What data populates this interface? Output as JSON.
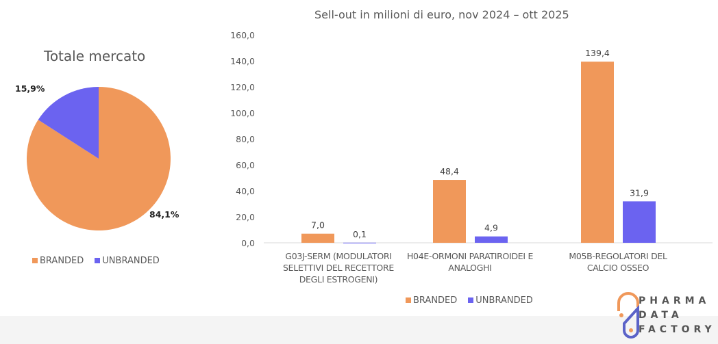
{
  "colors": {
    "branded": "#F0985A",
    "unbranded": "#6B63F0"
  },
  "logo": {
    "line1": "PHARMA",
    "line2": "DATA",
    "line3": "FACTORY"
  },
  "chart_data": [
    {
      "type": "pie",
      "title": "Totale mercato",
      "categories": [
        "BRANDED",
        "UNBRANDED"
      ],
      "values": [
        84.1,
        15.9
      ],
      "labels": [
        "84,1%",
        "15,9%"
      ],
      "legend": "bottom"
    },
    {
      "type": "bar",
      "title": "Sell-out in milioni  di euro, nov 2024 – ott 2025",
      "categories": [
        "G03J-SERM (MODULATORI SELETTIVI DEL RECETTORE DEGLI ESTROGENI)",
        "H04E-ORMONI PARATIROIDEI E ANALOGHI",
        "M05B-REGOLATORI DEL CALCIO OSSEO"
      ],
      "category_lines": [
        [
          "G03J-SERM (MODULATORI",
          "SELETTIVI DEL RECETTORE",
          "DEGLI ESTROGENI)"
        ],
        [
          "H04E-ORMONI PARATIROIDEI E",
          "ANALOGHI"
        ],
        [
          "M05B-REGOLATORI DEL",
          "CALCIO OSSEO"
        ]
      ],
      "series": [
        {
          "name": "BRANDED",
          "values": [
            7.0,
            48.4,
            139.4
          ],
          "labels": [
            "7,0",
            "48,4",
            "139,4"
          ]
        },
        {
          "name": "UNBRANDED",
          "values": [
            0.1,
            4.9,
            31.9
          ],
          "labels": [
            "0,1",
            "4,9",
            "31,9"
          ]
        }
      ],
      "ylim": [
        0,
        160
      ],
      "yticks": [
        "0,0",
        "20,0",
        "40,0",
        "60,0",
        "80,0",
        "100,0",
        "120,0",
        "140,0",
        "160,0"
      ],
      "grid": false,
      "legend": "bottom"
    }
  ]
}
